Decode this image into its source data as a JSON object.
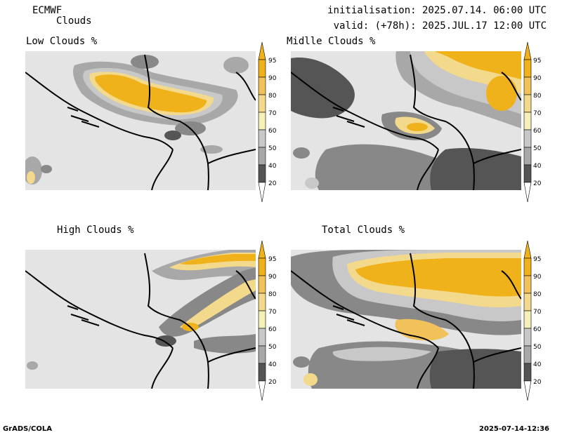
{
  "header": {
    "model": "ECMWF",
    "variable": "Clouds",
    "initialisation": "initialisation: 2025.07.14. 06:00 UTC",
    "valid": "valid: (+78h): 2025.JUL.17 12:00 UTC"
  },
  "panels": [
    {
      "title": "Low Clouds %"
    },
    {
      "title": "Midlle Clouds %"
    },
    {
      "title": "High Clouds %"
    },
    {
      "title": "Total Clouds %"
    }
  ],
  "legend": {
    "levels": [
      {
        "label": "95",
        "color": "#f0b21b"
      },
      {
        "label": "90",
        "color": "#f2c25a"
      },
      {
        "label": "80",
        "color": "#f3d98c"
      },
      {
        "label": "70",
        "color": "#f3f0b8"
      },
      {
        "label": "60",
        "color": "#c8c8c8"
      },
      {
        "label": "50",
        "color": "#a8a8a8"
      },
      {
        "label": "40",
        "color": "#888888"
      },
      {
        "label": "20",
        "color": "#555555"
      }
    ],
    "background_color": "#e4e4e4"
  },
  "footer": {
    "left": "GrADS/COLA",
    "right": "2025-07-14-12:36"
  }
}
